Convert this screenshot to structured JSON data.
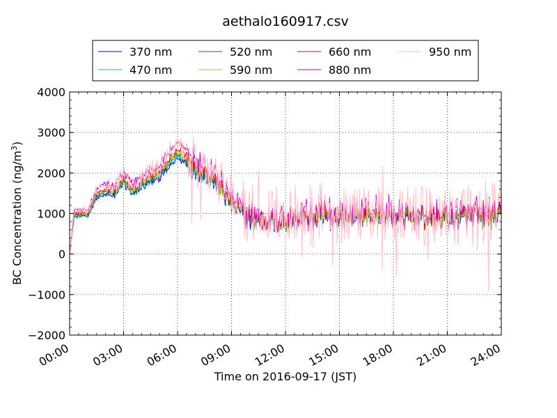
{
  "chart_data": {
    "type": "line",
    "title": "aethalo160917.csv",
    "xlabel": "Time on 2016-09-17 (JST)",
    "ylabel_main": "BC Concentration (ng/m",
    "ylabel_sup": "3",
    "ylabel_close": ")",
    "xlim": [
      "00:00",
      "24:00"
    ],
    "ylim": [
      -2000,
      4000
    ],
    "xticks": [
      "00:00",
      "03:00",
      "06:00",
      "09:00",
      "12:00",
      "15:00",
      "18:00",
      "21:00",
      "24:00"
    ],
    "yticks": [
      -2000,
      -1000,
      0,
      1000,
      2000,
      3000,
      4000
    ],
    "ytick_labels": [
      "−2000",
      "−1000",
      "0",
      "1000",
      "2000",
      "3000",
      "4000"
    ],
    "grid": true,
    "legend_position": "top",
    "keypoints_x_hours": [
      0,
      0.25,
      1,
      1.5,
      2,
      2.5,
      3,
      3.5,
      4,
      5,
      5.5,
      6,
      7,
      8,
      9,
      10,
      11,
      12,
      14,
      15,
      16,
      18,
      20,
      22,
      24
    ],
    "keypoints_base_ngm3": [
      0,
      1000,
      1000,
      1500,
      1600,
      1550,
      1900,
      1550,
      1800,
      2050,
      2300,
      2600,
      2200,
      1900,
      1300,
      900,
      850,
      850,
      950,
      950,
      1000,
      950,
      900,
      950,
      950
    ],
    "series": [
      {
        "name": "370 nm",
        "color": "#0000ff",
        "scale": 0.92,
        "noise": 1.0
      },
      {
        "name": "470 nm",
        "color": "#00bfbf",
        "scale": 0.94,
        "noise": 1.0
      },
      {
        "name": "520 nm",
        "color": "#008000",
        "scale": 0.96,
        "noise": 1.05
      },
      {
        "name": "590 nm",
        "color": "#bfbf00",
        "scale": 0.98,
        "noise": 1.1
      },
      {
        "name": "660 nm",
        "color": "#ff0000",
        "scale": 1.0,
        "noise": 1.15
      },
      {
        "name": "880 nm",
        "color": "#bf00bf",
        "scale": 1.08,
        "noise": 1.4
      },
      {
        "name": "950 nm",
        "color": "#ffc0cb",
        "scale": 1.05,
        "noise": 2.8
      }
    ]
  }
}
